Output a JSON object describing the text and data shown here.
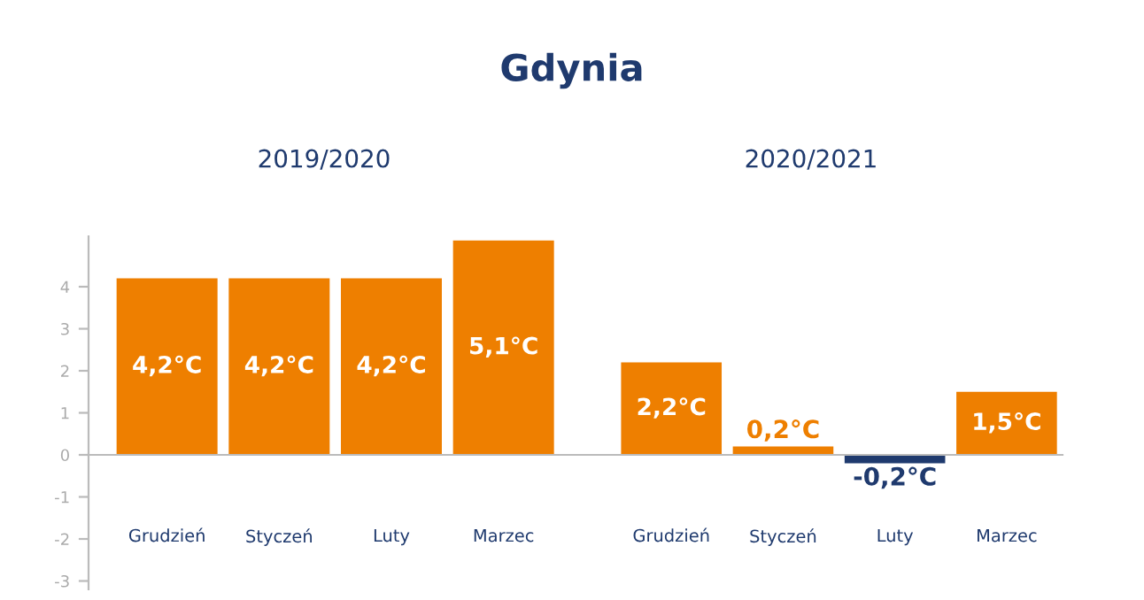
{
  "chart_data": [
    {
      "type": "bar",
      "title": "Gdynia",
      "subtitle": "2019/2020",
      "categories": [
        "Grudzień",
        "Styczeń",
        "Luty",
        "Marzec"
      ],
      "values": [
        4.2,
        4.2,
        4.2,
        5.1
      ],
      "colors": [
        "#ee7f00",
        "#ee7f00",
        "#ee7f00",
        "#ee7f00"
      ],
      "value_labels": [
        "4,2°C",
        "4,2°C",
        "4,2°C",
        "5,1°C"
      ],
      "ylim": [
        -3.2,
        5.2
      ],
      "yticks": [
        {
          "value": -3,
          "label": "-3"
        },
        {
          "value": -2,
          "label": "-2"
        },
        {
          "value": -1,
          "label": "-1"
        },
        0,
        1,
        2,
        3,
        4
      ]
    },
    {
      "type": "bar",
      "subtitle": "2020/2021",
      "categories": [
        "Grudzień",
        "Styczeń",
        "Luty",
        "Marzec"
      ],
      "values": [
        2.2,
        0.2,
        -0.2,
        1.5
      ],
      "colors": [
        "#ee7f00",
        "#ee7f00",
        "#1f3a6e",
        "#ee7f00"
      ],
      "value_labels": [
        "2,2°C",
        "0,2°C",
        "-0,2°C",
        "1,5°C"
      ],
      "tick_labels": "x"
    }
  ]
}
